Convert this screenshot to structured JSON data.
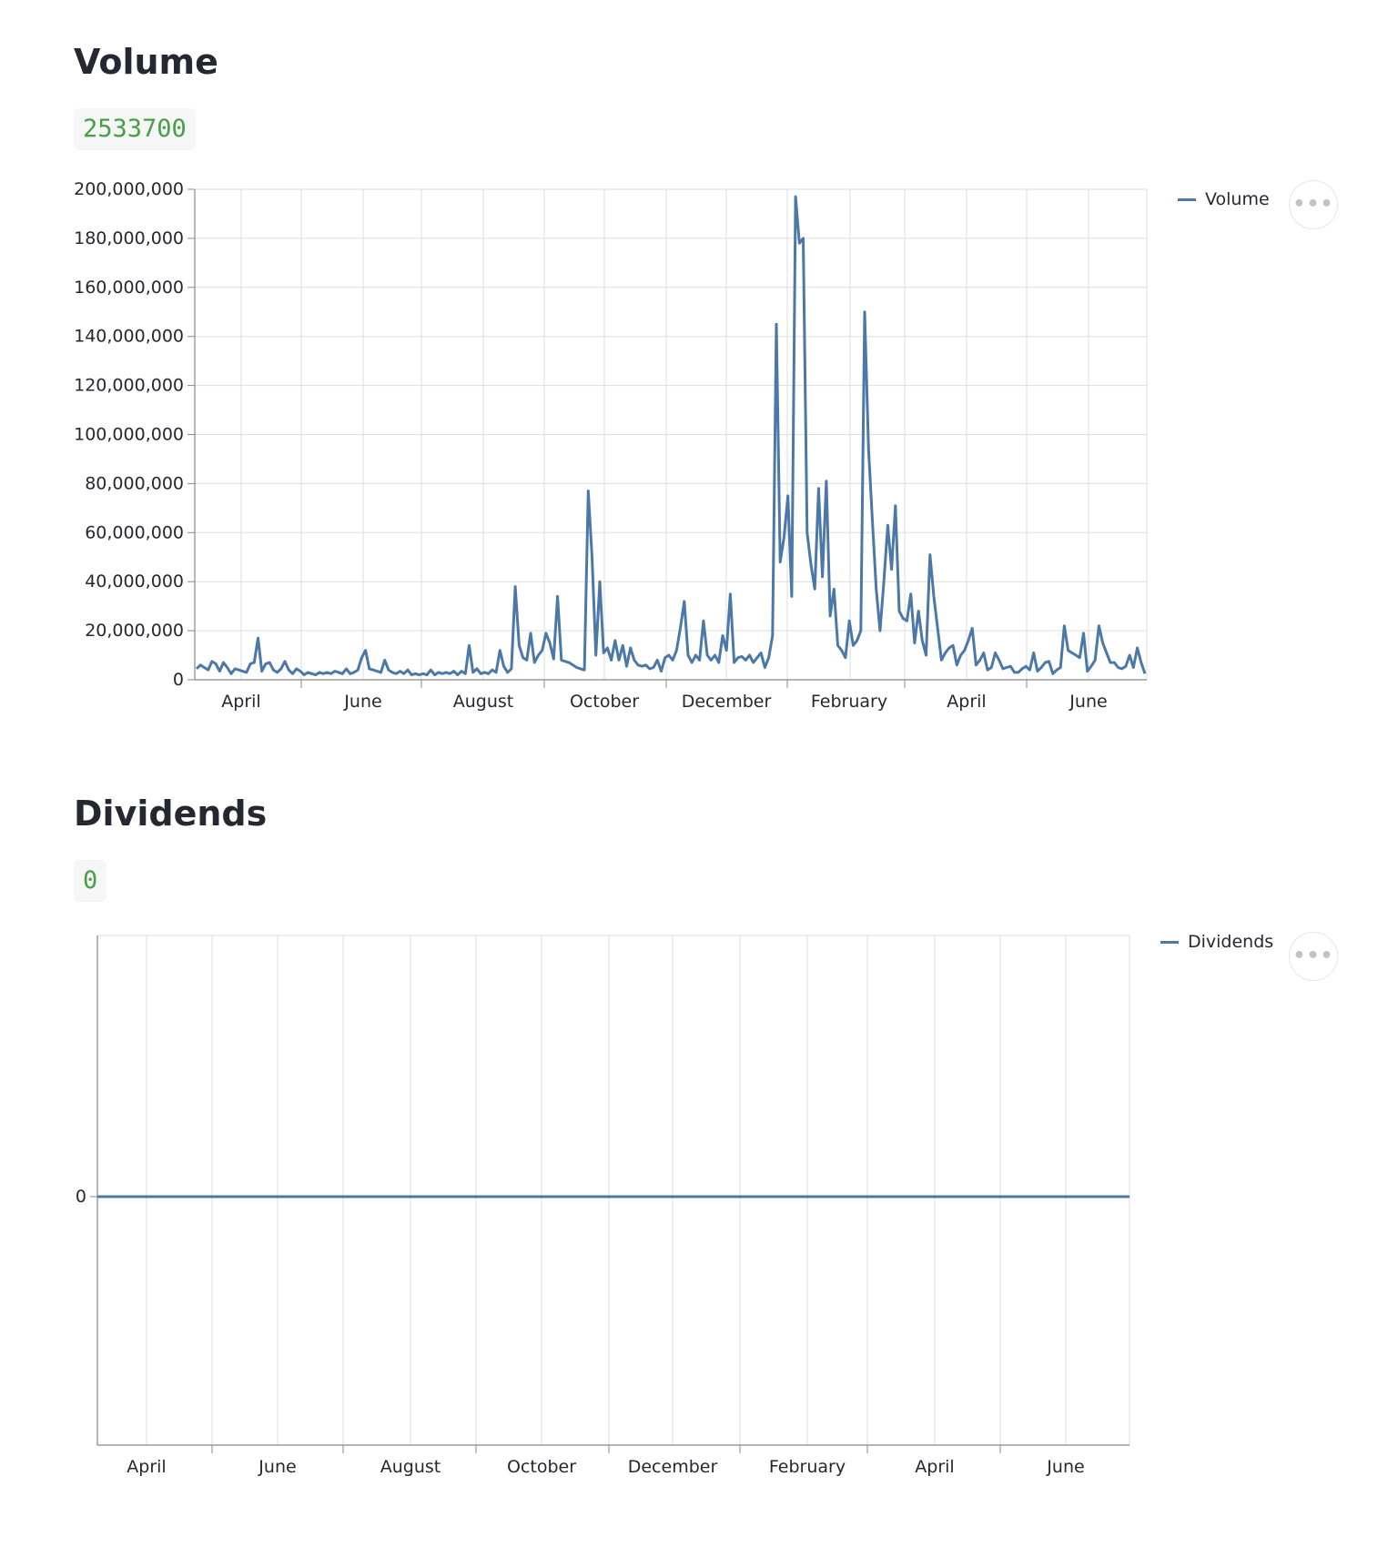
{
  "volume_section": {
    "title": "Volume",
    "value": "2533700",
    "legend": "Volume"
  },
  "dividends_section": {
    "title": "Dividends",
    "value": "0",
    "legend": "Dividends"
  },
  "colors": {
    "line": "#4c78a8",
    "grid": "#dddddd",
    "axis": "#888888",
    "value_text": "#45a045"
  },
  "icons": {
    "menu": "ellipsis-icon"
  },
  "chart_data": [
    {
      "type": "line",
      "title": "",
      "xlabel": "",
      "ylabel": "",
      "legend_position": "top-right",
      "grid": true,
      "ylim": [
        0,
        200000000
      ],
      "y_ticks": [
        0,
        20000000,
        40000000,
        60000000,
        80000000,
        100000000,
        120000000,
        140000000,
        160000000,
        180000000,
        200000000
      ],
      "y_tick_labels": [
        "0",
        "20,000,000",
        "40,000,000",
        "60,000,000",
        "80,000,000",
        "100,000,000",
        "120,000,000",
        "140,000,000",
        "160,000,000",
        "180,000,000",
        "200,000,000"
      ],
      "x_ticks": [
        "April",
        "June",
        "August",
        "October",
        "December",
        "February",
        "April",
        "June"
      ],
      "series": [
        {
          "name": "Volume",
          "points": [
            [
              0.0,
              4500000
            ],
            [
              1.0,
              6000000
            ],
            [
              2.0,
              5000000
            ],
            [
              3.0,
              4000000
            ],
            [
              4.0,
              7500000
            ],
            [
              5.0,
              6500000
            ],
            [
              6.0,
              3500000
            ],
            [
              7.0,
              7000000
            ],
            [
              8.0,
              5000000
            ],
            [
              9.0,
              2500000
            ],
            [
              10.0,
              4500000
            ],
            [
              11.0,
              4000000
            ],
            [
              12.0,
              3500000
            ],
            [
              13.0,
              3000000
            ],
            [
              14.0,
              6500000
            ],
            [
              15.0,
              7000000
            ],
            [
              16.0,
              17000000
            ],
            [
              17.0,
              3500000
            ],
            [
              18.0,
              6500000
            ],
            [
              19.0,
              7000000
            ],
            [
              20.0,
              4000000
            ],
            [
              21.0,
              3000000
            ],
            [
              22.0,
              4500000
            ],
            [
              23.0,
              7500000
            ],
            [
              24.0,
              4000000
            ],
            [
              25.0,
              2500000
            ],
            [
              26.0,
              4500000
            ],
            [
              27.0,
              3500000
            ],
            [
              28.0,
              2000000
            ],
            [
              29.0,
              3000000
            ],
            [
              30.0,
              2500000
            ],
            [
              31.0,
              2000000
            ],
            [
              32.0,
              3000000
            ],
            [
              33.0,
              2500000
            ],
            [
              34.0,
              3000000
            ],
            [
              35.0,
              2500000
            ],
            [
              36.0,
              3500000
            ],
            [
              37.0,
              3000000
            ],
            [
              38.0,
              2500000
            ],
            [
              39.0,
              4500000
            ],
            [
              40.0,
              2500000
            ],
            [
              41.0,
              3000000
            ],
            [
              42.0,
              4000000
            ],
            [
              43.0,
              9000000
            ],
            [
              44.0,
              12000000
            ],
            [
              45.0,
              4500000
            ],
            [
              46.0,
              4000000
            ],
            [
              47.0,
              3500000
            ],
            [
              48.0,
              3000000
            ],
            [
              49.0,
              8000000
            ],
            [
              50.0,
              4000000
            ],
            [
              51.0,
              3000000
            ],
            [
              52.0,
              2500000
            ],
            [
              53.0,
              3500000
            ],
            [
              54.0,
              2500000
            ],
            [
              55.0,
              4000000
            ],
            [
              56.0,
              2000000
            ],
            [
              57.0,
              2500000
            ],
            [
              58.0,
              2000000
            ],
            [
              59.0,
              2500000
            ],
            [
              60.0,
              2000000
            ],
            [
              61.0,
              4000000
            ],
            [
              62.0,
              2000000
            ],
            [
              63.0,
              3000000
            ],
            [
              64.0,
              2500000
            ],
            [
              65.0,
              3000000
            ],
            [
              66.0,
              2500000
            ],
            [
              67.0,
              3500000
            ],
            [
              68.0,
              2000000
            ],
            [
              69.0,
              3500000
            ],
            [
              70.0,
              2500000
            ],
            [
              71.0,
              14000000
            ],
            [
              72.0,
              3000000
            ],
            [
              73.0,
              4500000
            ],
            [
              74.0,
              2500000
            ],
            [
              75.0,
              3000000
            ],
            [
              76.0,
              2500000
            ],
            [
              77.0,
              4000000
            ],
            [
              78.0,
              3000000
            ],
            [
              79.0,
              12000000
            ],
            [
              80.0,
              5500000
            ],
            [
              81.0,
              3000000
            ],
            [
              82.0,
              4500000
            ],
            [
              83.0,
              38000000
            ],
            [
              84.0,
              14000000
            ],
            [
              85.0,
              9000000
            ],
            [
              86.0,
              8000000
            ],
            [
              87.0,
              19000000
            ],
            [
              88.0,
              7000000
            ],
            [
              89.0,
              10000000
            ],
            [
              90.0,
              12000000
            ],
            [
              91.0,
              19000000
            ],
            [
              92.0,
              15000000
            ],
            [
              93.0,
              8500000
            ],
            [
              94.0,
              34000000
            ],
            [
              95.0,
              8000000
            ],
            [
              96.0,
              7500000
            ],
            [
              97.0,
              7000000
            ],
            [
              98.0,
              6000000
            ],
            [
              99.0,
              5000000
            ],
            [
              100.0,
              4500000
            ],
            [
              101.0,
              4000000
            ],
            [
              102.0,
              77000000
            ],
            [
              103.0,
              50000000
            ],
            [
              104.0,
              10000000
            ],
            [
              105.0,
              40000000
            ],
            [
              106.0,
              11000000
            ],
            [
              107.0,
              13000000
            ],
            [
              108.0,
              8000000
            ],
            [
              109.0,
              16000000
            ],
            [
              110.0,
              8000000
            ],
            [
              111.0,
              14000000
            ],
            [
              112.0,
              5500000
            ],
            [
              113.0,
              13000000
            ],
            [
              114.0,
              8000000
            ],
            [
              115.0,
              6000000
            ],
            [
              116.0,
              5500000
            ],
            [
              117.0,
              6000000
            ],
            [
              118.0,
              4500000
            ],
            [
              119.0,
              5000000
            ],
            [
              120.0,
              8000000
            ],
            [
              121.0,
              3500000
            ],
            [
              122.0,
              9000000
            ],
            [
              123.0,
              10000000
            ],
            [
              124.0,
              8000000
            ],
            [
              125.0,
              12000000
            ],
            [
              126.0,
              21000000
            ],
            [
              127.0,
              32000000
            ],
            [
              128.0,
              10000000
            ],
            [
              129.0,
              7000000
            ],
            [
              130.0,
              10000000
            ],
            [
              131.0,
              8000000
            ],
            [
              132.0,
              24000000
            ],
            [
              133.0,
              10000000
            ],
            [
              134.0,
              8000000
            ],
            [
              135.0,
              10000000
            ],
            [
              136.0,
              7000000
            ],
            [
              137.0,
              18000000
            ],
            [
              138.0,
              12000000
            ],
            [
              139.0,
              35000000
            ],
            [
              140.0,
              7000000
            ],
            [
              141.0,
              9000000
            ],
            [
              142.0,
              9500000
            ],
            [
              143.0,
              8000000
            ],
            [
              144.0,
              10000000
            ],
            [
              145.0,
              7000000
            ],
            [
              146.0,
              9000000
            ],
            [
              147.0,
              11000000
            ],
            [
              148.0,
              5000000
            ],
            [
              149.0,
              9000000
            ],
            [
              150.0,
              18000000
            ],
            [
              151.0,
              145000000
            ],
            [
              152.0,
              48000000
            ],
            [
              153.0,
              58000000
            ],
            [
              154.0,
              75000000
            ],
            [
              155.0,
              34000000
            ],
            [
              156.0,
              197000000
            ],
            [
              157.0,
              178000000
            ],
            [
              158.0,
              180000000
            ],
            [
              159.0,
              60000000
            ],
            [
              160.0,
              47000000
            ],
            [
              161.0,
              37000000
            ],
            [
              162.0,
              78000000
            ],
            [
              163.0,
              42000000
            ],
            [
              164.0,
              81000000
            ],
            [
              165.0,
              26000000
            ],
            [
              166.0,
              37000000
            ],
            [
              167.0,
              14000000
            ],
            [
              168.0,
              12000000
            ],
            [
              169.0,
              9000000
            ],
            [
              170.0,
              24000000
            ],
            [
              171.0,
              14000000
            ],
            [
              172.0,
              16000000
            ],
            [
              173.0,
              20000000
            ],
            [
              174.0,
              150000000
            ],
            [
              175.0,
              94000000
            ],
            [
              176.0,
              65000000
            ],
            [
              177.0,
              37000000
            ],
            [
              178.0,
              20000000
            ],
            [
              179.0,
              40000000
            ],
            [
              180.0,
              63000000
            ],
            [
              181.0,
              45000000
            ],
            [
              182.0,
              71000000
            ],
            [
              183.0,
              28000000
            ],
            [
              184.0,
              25000000
            ],
            [
              185.0,
              24000000
            ],
            [
              186.0,
              35000000
            ],
            [
              187.0,
              15000000
            ],
            [
              188.0,
              28000000
            ],
            [
              189.0,
              16000000
            ],
            [
              190.0,
              10000000
            ],
            [
              191.0,
              51000000
            ],
            [
              192.0,
              34000000
            ],
            [
              193.0,
              21000000
            ],
            [
              194.0,
              8000000
            ],
            [
              195.0,
              11000000
            ],
            [
              196.0,
              13000000
            ],
            [
              197.0,
              14000000
            ],
            [
              198.0,
              6000000
            ],
            [
              199.0,
              10000000
            ],
            [
              200.0,
              12000000
            ],
            [
              201.0,
              16000000
            ],
            [
              202.0,
              21000000
            ],
            [
              203.0,
              6000000
            ],
            [
              204.0,
              8000000
            ],
            [
              205.0,
              11000000
            ],
            [
              206.0,
              4000000
            ],
            [
              207.0,
              5000000
            ],
            [
              208.0,
              11000000
            ],
            [
              209.0,
              8000000
            ],
            [
              210.0,
              4500000
            ],
            [
              211.0,
              5000000
            ],
            [
              212.0,
              5500000
            ],
            [
              213.0,
              3000000
            ],
            [
              214.0,
              3000000
            ],
            [
              215.0,
              4500000
            ],
            [
              216.0,
              5500000
            ],
            [
              217.0,
              4000000
            ],
            [
              218.0,
              11000000
            ],
            [
              219.0,
              3500000
            ],
            [
              220.0,
              5000000
            ],
            [
              221.0,
              7000000
            ],
            [
              222.0,
              7500000
            ],
            [
              223.0,
              2500000
            ],
            [
              224.0,
              4000000
            ],
            [
              225.0,
              5000000
            ],
            [
              226.0,
              22000000
            ],
            [
              227.0,
              12000000
            ],
            [
              228.0,
              11000000
            ],
            [
              229.0,
              10000000
            ],
            [
              230.0,
              9000000
            ],
            [
              231.0,
              19000000
            ],
            [
              232.0,
              3500000
            ],
            [
              233.0,
              5500000
            ],
            [
              234.0,
              8000000
            ],
            [
              235.0,
              22000000
            ],
            [
              236.0,
              15000000
            ],
            [
              237.0,
              11000000
            ],
            [
              238.0,
              7000000
            ],
            [
              239.0,
              7000000
            ],
            [
              240.0,
              5000000
            ],
            [
              241.0,
              4500000
            ],
            [
              242.0,
              5500000
            ],
            [
              243.0,
              10000000
            ],
            [
              244.0,
              5000000
            ],
            [
              245.0,
              13000000
            ],
            [
              246.0,
              7000000
            ],
            [
              247.0,
              2500000
            ]
          ]
        }
      ]
    },
    {
      "type": "line",
      "title": "",
      "xlabel": "",
      "ylabel": "",
      "legend_position": "top-right",
      "grid": true,
      "y_ticks": [
        0
      ],
      "y_tick_labels": [
        "0"
      ],
      "x_ticks": [
        "April",
        "June",
        "August",
        "October",
        "December",
        "February",
        "April",
        "June"
      ],
      "series": [
        {
          "name": "Dividends",
          "values": [
            0,
            0
          ]
        }
      ]
    }
  ]
}
